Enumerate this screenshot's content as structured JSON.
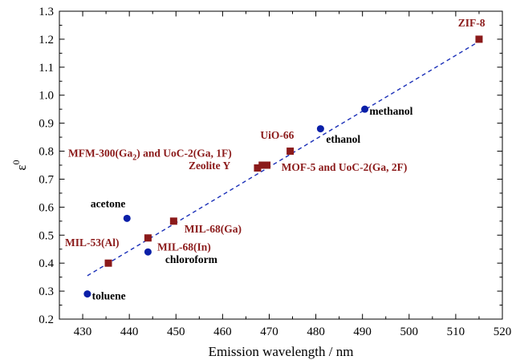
{
  "chart_data": {
    "type": "scatter",
    "xlabel": "Emission wavelength / nm",
    "ylabel": "ε",
    "ylabel_superscript": "0",
    "xlim": [
      425,
      520
    ],
    "ylim": [
      0.2,
      1.3
    ],
    "x_ticks": [
      430,
      440,
      450,
      460,
      470,
      480,
      490,
      500,
      510,
      520
    ],
    "y_ticks": [
      0.2,
      0.3,
      0.4,
      0.5,
      0.6,
      0.7,
      0.8,
      0.9,
      1.0,
      1.1,
      1.2,
      1.3
    ],
    "grid": false,
    "series": [
      {
        "marker": "circle",
        "color": "#0a1fa8",
        "points": [
          {
            "x": 431.0,
            "y": 0.29
          },
          {
            "x": 439.5,
            "y": 0.56
          },
          {
            "x": 444.0,
            "y": 0.44
          },
          {
            "x": 481.0,
            "y": 0.88
          },
          {
            "x": 490.5,
            "y": 0.95
          }
        ]
      },
      {
        "marker": "square",
        "color": "#8b1a1a",
        "points": [
          {
            "x": 435.5,
            "y": 0.4
          },
          {
            "x": 444.0,
            "y": 0.49
          },
          {
            "x": 449.5,
            "y": 0.55
          },
          {
            "x": 467.5,
            "y": 0.74
          },
          {
            "x": 468.5,
            "y": 0.75
          },
          {
            "x": 469.5,
            "y": 0.75
          },
          {
            "x": 474.5,
            "y": 0.8
          },
          {
            "x": 515.0,
            "y": 1.2
          }
        ]
      }
    ],
    "fit_line": {
      "color": "#1a2fb8",
      "style": "dashed",
      "x": [
        431.0,
        515.0
      ],
      "y": [
        0.355,
        1.192
      ]
    },
    "annotations": [
      {
        "text": "toluene",
        "color": "#000000",
        "x": 432.0,
        "y": 0.27
      },
      {
        "text": "acetone",
        "color": "#000000",
        "x": 431.7,
        "y": 0.6
      },
      {
        "text": "chloroform",
        "color": "#000000",
        "x": 447.7,
        "y": 0.4
      },
      {
        "text": "ethanol",
        "color": "#000000",
        "x": 482.2,
        "y": 0.83
      },
      {
        "text": "methanol",
        "color": "#000000",
        "x": 491.5,
        "y": 0.93
      },
      {
        "text": "MIL-53(Al)",
        "color": "#8b1a1a",
        "x": 426.2,
        "y": 0.46
      },
      {
        "text": "MIL-68(In)",
        "color": "#8b1a1a",
        "x": 446.0,
        "y": 0.445
      },
      {
        "text": "MIL-68(Ga)",
        "color": "#8b1a1a",
        "x": 451.8,
        "y": 0.51
      },
      {
        "text": "Zeolite Y",
        "color": "#8b1a1a",
        "x": 452.7,
        "y": 0.735
      },
      {
        "text": "MOF-5 and UoC-2(Ga, 2F)",
        "color": "#8b1a1a",
        "x": 472.6,
        "y": 0.73
      },
      {
        "text": "UiO-66",
        "color": "#8b1a1a",
        "x": 468.1,
        "y": 0.845
      },
      {
        "text": "ZIF-8",
        "color": "#8b1a1a",
        "x": 510.5,
        "y": 1.245
      }
    ],
    "annotation_mfm": {
      "prefix": "MFM-300(Ga",
      "subscript": "2",
      "suffix": ") and UoC-2(Ga, 1F)",
      "color": "#8b1a1a",
      "x": 426.9,
      "y": 0.78
    }
  }
}
